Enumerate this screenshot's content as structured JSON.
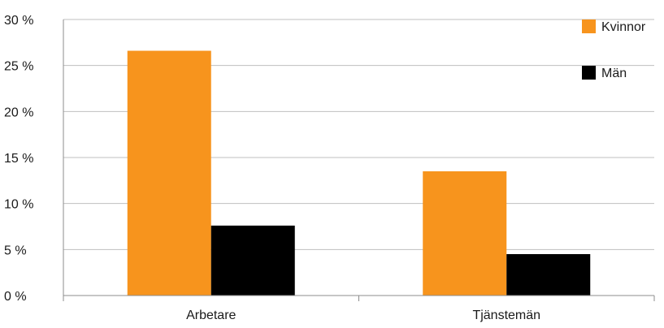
{
  "chart_data": {
    "type": "bar",
    "categories": [
      "Arbetare",
      "Tjänstemän"
    ],
    "series": [
      {
        "name": "Kvinnor",
        "values": [
          26.6,
          13.5
        ],
        "color": "#F7941D"
      },
      {
        "name": "Män",
        "values": [
          7.6,
          4.5
        ],
        "color": "#000000"
      }
    ],
    "ylim": [
      0,
      30
    ],
    "yticks": [
      0,
      5,
      10,
      15,
      20,
      25,
      30
    ],
    "ytick_labels": [
      "0 %",
      "5 %",
      "10 %",
      "15 %",
      "20 %",
      "25 %",
      "30 %"
    ],
    "title": "",
    "xlabel": "",
    "ylabel": "",
    "grid": true,
    "legend_position": "top-right",
    "grid_color": "#bfbfbf",
    "axis_color": "#8c8c8c"
  }
}
